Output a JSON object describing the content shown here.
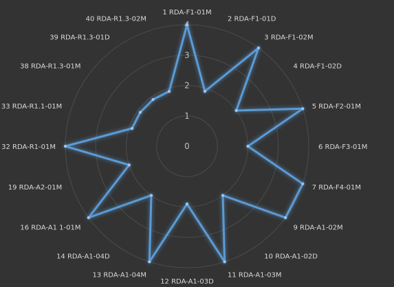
{
  "chart_data": {
    "type": "radar",
    "title": "",
    "categories": [
      "1 RDA-F1-01M",
      "2 RDA-F1-01D",
      "3 RDA-F1-02M",
      "4 RDA-F1-02D",
      "5 RDA-F2-01M",
      "6 RDA-F3-01M",
      "7 RDA-F4-01M",
      "9 RDA-A1-02M",
      "10 RDA-A1-02D",
      "11 RDA-A1-03M",
      "12 RDA-A1-03D",
      "13 RDA-A1-04M",
      "14 RDA-A1-04D",
      "16 RDA-A1 1-01M",
      "19 RDA-A2-01M",
      "32 RDA-R1-01M",
      "33 RDA-R1.1-01M",
      "38 RDA-R1.3-01M",
      "39 RDA-R1.3-01D",
      "40 RDA-R1.3-02M"
    ],
    "series": [
      {
        "values": [
          4,
          1.9,
          4,
          2,
          4,
          2,
          4,
          4,
          2,
          4,
          1.9,
          4,
          2,
          4,
          2,
          4,
          1.9,
          1.9,
          1.9,
          1.9
        ],
        "color": "#5b9bd5"
      }
    ],
    "radial_ticks": [
      "0",
      "1",
      "2",
      "3",
      "4"
    ],
    "rlim": [
      0,
      4
    ],
    "grid": true,
    "legend": "none"
  }
}
